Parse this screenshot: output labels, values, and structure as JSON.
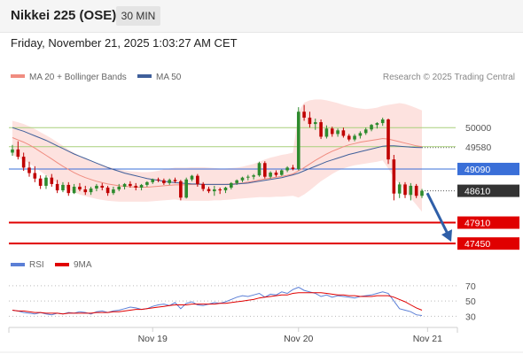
{
  "header": {
    "title": "Nikkei 225 (OSE)",
    "timeframe": "30 MIN",
    "datetime": "Friday, November 21, 2025 1:03:27 AM CET"
  },
  "chart_data": [
    {
      "type": "candlestick",
      "legend": [
        {
          "name": "MA 20 + Bollinger Bands",
          "color": "#f08c80"
        },
        {
          "name": "MA 50",
          "color": "#3f5f9a"
        }
      ],
      "credit": "Research © 2025 Trading Central",
      "ylim": [
        47200,
        50900
      ],
      "ohlc": [
        [
          49450,
          49620,
          49380,
          49520
        ],
        [
          49520,
          49700,
          49300,
          49360
        ],
        [
          49360,
          49450,
          49050,
          49120
        ],
        [
          49120,
          49250,
          48920,
          49000
        ],
        [
          49000,
          49150,
          48800,
          48880
        ],
        [
          48880,
          48950,
          48650,
          48720
        ],
        [
          48720,
          48950,
          48650,
          48900
        ],
        [
          48900,
          48980,
          48700,
          48760
        ],
        [
          48760,
          48850,
          48560,
          48620
        ],
        [
          48620,
          48800,
          48580,
          48740
        ],
        [
          48740,
          48800,
          48500,
          48560
        ],
        [
          48560,
          48760,
          48540,
          48700
        ],
        [
          48700,
          48780,
          48600,
          48640
        ],
        [
          48640,
          48720,
          48520,
          48580
        ],
        [
          48580,
          48700,
          48520,
          48660
        ],
        [
          48660,
          48760,
          48600,
          48720
        ],
        [
          48720,
          48780,
          48620,
          48680
        ],
        [
          48680,
          48720,
          48500,
          48560
        ],
        [
          48560,
          48700,
          48520,
          48640
        ],
        [
          48640,
          48760,
          48600,
          48700
        ],
        [
          48700,
          48780,
          48640,
          48760
        ],
        [
          48760,
          48820,
          48680,
          48720
        ],
        [
          48720,
          48780,
          48620,
          48680
        ],
        [
          48680,
          48760,
          48620,
          48740
        ],
        [
          48740,
          48820,
          48700,
          48800
        ],
        [
          48800,
          48880,
          48760,
          48860
        ],
        [
          48860,
          48900,
          48800,
          48840
        ],
        [
          48840,
          48880,
          48740,
          48780
        ],
        [
          48780,
          48880,
          48740,
          48850
        ],
        [
          48850,
          48900,
          48780,
          48820
        ],
        [
          48820,
          48850,
          48400,
          48460
        ],
        [
          48460,
          48900,
          48440,
          48860
        ],
        [
          48860,
          48960,
          48820,
          48940
        ],
        [
          48940,
          48980,
          48700,
          48760
        ],
        [
          48760,
          48800,
          48600,
          48650
        ],
        [
          48650,
          48700,
          48560,
          48600
        ],
        [
          48600,
          48720,
          48500,
          48640
        ],
        [
          48640,
          48680,
          48540,
          48620
        ],
        [
          48620,
          48700,
          48560,
          48680
        ],
        [
          48680,
          48800,
          48640,
          48780
        ],
        [
          48780,
          48860,
          48740,
          48840
        ],
        [
          48840,
          48920,
          48800,
          48900
        ],
        [
          48900,
          48960,
          48840,
          48920
        ],
        [
          48920,
          48980,
          48860,
          48950
        ],
        [
          48950,
          49250,
          48920,
          49220
        ],
        [
          49220,
          49260,
          48880,
          48920
        ],
        [
          48920,
          49040,
          48880,
          49010
        ],
        [
          49010,
          49060,
          48920,
          48960
        ],
        [
          48960,
          49080,
          48940,
          49060
        ],
        [
          49060,
          49150,
          49020,
          49120
        ],
        [
          49120,
          49180,
          49060,
          49090
        ],
        [
          49090,
          50450,
          49060,
          50350
        ],
        [
          50350,
          50500,
          50150,
          50220
        ],
        [
          50220,
          50350,
          50000,
          50080
        ],
        [
          50080,
          50200,
          49950,
          50120
        ],
        [
          50120,
          50180,
          49750,
          49800
        ],
        [
          49800,
          50050,
          49760,
          49980
        ],
        [
          49980,
          50020,
          49800,
          49860
        ],
        [
          49860,
          49980,
          49800,
          49940
        ],
        [
          49940,
          50000,
          49780,
          49820
        ],
        [
          49820,
          49860,
          49700,
          49740
        ],
        [
          49740,
          49860,
          49700,
          49820
        ],
        [
          49820,
          49920,
          49760,
          49880
        ],
        [
          49880,
          50000,
          49840,
          49960
        ],
        [
          49960,
          50080,
          49920,
          50060
        ],
        [
          50060,
          50120,
          49980,
          50100
        ],
        [
          50100,
          50220,
          50040,
          50180
        ],
        [
          50180,
          50200,
          49200,
          49300
        ],
        [
          49300,
          49400,
          48400,
          48550
        ],
        [
          48550,
          48800,
          48450,
          48750
        ],
        [
          48750,
          48800,
          48450,
          48520
        ],
        [
          48520,
          48780,
          48400,
          48720
        ],
        [
          48720,
          48760,
          48450,
          48500
        ],
        [
          48500,
          48650,
          48450,
          48610
        ]
      ],
      "ma20": [
        49780,
        49730,
        49680,
        49620,
        49550,
        49470,
        49390,
        49310,
        49230,
        49150,
        49080,
        49010,
        48950,
        48900,
        48860,
        48820,
        48790,
        48760,
        48740,
        48720,
        48710,
        48700,
        48690,
        48690,
        48690,
        48700,
        48710,
        48720,
        48730,
        48740,
        48740,
        48740,
        48750,
        48750,
        48750,
        48750,
        48750,
        48750,
        48750,
        48760,
        48770,
        48780,
        48800,
        48820,
        48850,
        48870,
        48890,
        48910,
        48930,
        48950,
        48980,
        49050,
        49120,
        49200,
        49280,
        49350,
        49420,
        49480,
        49530,
        49580,
        49620,
        49650,
        49680,
        49700,
        49720,
        49740,
        49760,
        49750,
        49720,
        49690,
        49660,
        49630,
        49600,
        49580
      ],
      "bb_upper": [
        50150,
        50120,
        50080,
        50030,
        49970,
        49900,
        49830,
        49760,
        49680,
        49600,
        49520,
        49450,
        49380,
        49320,
        49270,
        49220,
        49180,
        49140,
        49110,
        49080,
        49060,
        49040,
        49030,
        49020,
        49020,
        49030,
        49050,
        49080,
        49100,
        49120,
        49120,
        49120,
        49130,
        49130,
        49130,
        49120,
        49110,
        49100,
        49100,
        49110,
        49120,
        49140,
        49170,
        49200,
        49250,
        49300,
        49340,
        49370,
        49400,
        49420,
        49450,
        50350,
        50550,
        50600,
        50620,
        50620,
        50600,
        50570,
        50540,
        50500,
        50470,
        50440,
        50420,
        50410,
        50420,
        50440,
        50480,
        50500,
        50520,
        50540,
        50520,
        50480,
        50430,
        50380
      ],
      "bb_lower": [
        49400,
        49340,
        49280,
        49210,
        49130,
        49040,
        48950,
        48860,
        48780,
        48700,
        48640,
        48580,
        48530,
        48490,
        48460,
        48430,
        48410,
        48390,
        48380,
        48370,
        48370,
        48370,
        48370,
        48370,
        48370,
        48380,
        48390,
        48400,
        48410,
        48420,
        48400,
        48390,
        48390,
        48390,
        48390,
        48390,
        48400,
        48400,
        48410,
        48420,
        48430,
        48440,
        48450,
        48460,
        48470,
        48470,
        48470,
        48480,
        48480,
        48490,
        48500,
        48460,
        48530,
        48620,
        48720,
        48820,
        48900,
        48980,
        49050,
        49100,
        49140,
        49170,
        49190,
        49210,
        49230,
        49250,
        49280,
        49100,
        48900,
        48750,
        48600,
        48450,
        48300,
        48150
      ],
      "ma50": [
        50000,
        49960,
        49920,
        49870,
        49820,
        49770,
        49720,
        49660,
        49600,
        49540,
        49480,
        49420,
        49370,
        49320,
        49270,
        49220,
        49170,
        49120,
        49080,
        49040,
        49000,
        48970,
        48940,
        48910,
        48880,
        48860,
        48840,
        48820,
        48800,
        48790,
        48780,
        48770,
        48760,
        48760,
        48750,
        48750,
        48750,
        48750,
        48750,
        48750,
        48760,
        48770,
        48780,
        48800,
        48820,
        48840,
        48860,
        48880,
        48900,
        48930,
        48960,
        49000,
        49050,
        49100,
        49150,
        49200,
        49250,
        49290,
        49330,
        49370,
        49410,
        49440,
        49470,
        49500,
        49530,
        49560,
        49590,
        49600,
        49600,
        49590,
        49580,
        49570,
        49565,
        49560
      ],
      "levels": [
        {
          "value": 50000,
          "label": "50000",
          "kind": "resistance"
        },
        {
          "value": 49580,
          "label": "49580",
          "kind": "resistance"
        },
        {
          "value": 49090,
          "label": "49090",
          "kind": "pivot"
        },
        {
          "value": 48610,
          "label": "48610",
          "kind": "last"
        },
        {
          "value": 47910,
          "label": "47910",
          "kind": "support"
        },
        {
          "value": 47450,
          "label": "47450",
          "kind": "support"
        }
      ],
      "colors": {
        "up": "#2e8b2e",
        "down": "#c00000",
        "resistance": "#a8cf7a",
        "pivot": "#3a6fd8",
        "support": "#e00000",
        "last": "#333333",
        "bb_fill": "#fde2df",
        "ma20": "#f08c80",
        "ma50": "#3f5f9a",
        "arrow": "#2f5fa8"
      }
    },
    {
      "type": "line",
      "legend": [
        {
          "name": "RSI",
          "color": "#5b7fd6"
        },
        {
          "name": "9MA",
          "color": "#e00000"
        }
      ],
      "ylim": [
        20,
        85
      ],
      "yticks": [
        "70",
        "50",
        "30"
      ],
      "ytick_values": [
        70,
        50,
        30
      ],
      "xticks": [
        "Nov 19",
        "Nov 20",
        "Nov 21"
      ],
      "xtick_index": [
        25,
        51,
        74
      ],
      "rsi": [
        38,
        37,
        35,
        34,
        33,
        35,
        33,
        32,
        34,
        33,
        35,
        34,
        36,
        35,
        33,
        36,
        37,
        35,
        37,
        38,
        40,
        42,
        41,
        39,
        40,
        43,
        45,
        46,
        44,
        48,
        40,
        47,
        49,
        45,
        44,
        46,
        48,
        47,
        49,
        52,
        55,
        57,
        56,
        58,
        60,
        55,
        59,
        58,
        62,
        60,
        65,
        68,
        64,
        62,
        60,
        56,
        58,
        55,
        57,
        56,
        55,
        54,
        56,
        57,
        58,
        60,
        62,
        60,
        50,
        40,
        38,
        36,
        32,
        31
      ],
      "ma9": [
        38,
        37,
        37,
        36,
        35,
        35,
        34,
        34,
        34,
        33,
        34,
        34,
        34,
        34,
        34,
        35,
        35,
        35,
        36,
        36,
        37,
        38,
        39,
        39,
        40,
        41,
        42,
        43,
        44,
        45,
        45,
        45,
        46,
        46,
        46,
        46,
        46,
        47,
        47,
        48,
        49,
        50,
        51,
        52,
        54,
        55,
        56,
        57,
        58,
        58,
        60,
        61,
        61,
        61,
        61,
        61,
        60,
        59,
        58,
        58,
        57,
        57,
        56,
        56,
        56,
        57,
        57,
        57,
        55,
        52,
        49,
        45,
        41,
        38
      ]
    }
  ]
}
